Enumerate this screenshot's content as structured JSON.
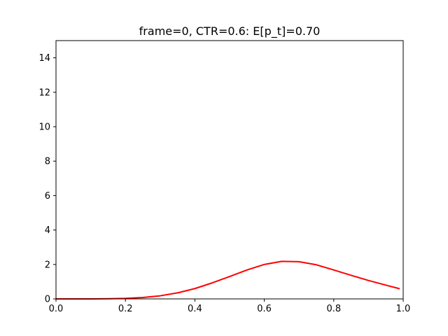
{
  "chart_data": {
    "type": "line",
    "title": "frame=0, CTR=0.6: E[p_t]=0.70",
    "xlabel": "",
    "ylabel": "",
    "xlim": [
      0.0,
      1.0
    ],
    "ylim": [
      0,
      15
    ],
    "x_ticks": [
      "0.0",
      "0.2",
      "0.4",
      "0.6",
      "0.8",
      "1.0"
    ],
    "y_ticks": [
      "0",
      "2",
      "4",
      "6",
      "8",
      "10",
      "12",
      "14"
    ],
    "grid": false,
    "series": [
      {
        "color": "#ff0000",
        "x": [
          0.0,
          0.05,
          0.1,
          0.15,
          0.2,
          0.25,
          0.3,
          0.35,
          0.4,
          0.45,
          0.5,
          0.55,
          0.6,
          0.65,
          0.7,
          0.75,
          0.8,
          0.85,
          0.9,
          0.95,
          0.99
        ],
        "y": [
          0.0,
          0.0,
          0.0,
          0.01,
          0.03,
          0.08,
          0.18,
          0.35,
          0.6,
          0.93,
          1.3,
          1.68,
          2.0,
          2.18,
          2.16,
          1.98,
          1.68,
          1.37,
          1.07,
          0.8,
          0.59
        ]
      }
    ]
  }
}
